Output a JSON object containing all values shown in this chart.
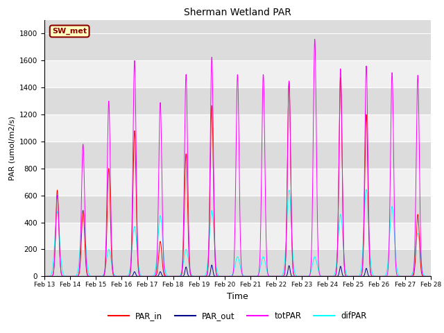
{
  "title": "Sherman Wetland PAR",
  "xlabel": "Time",
  "ylabel": "PAR (umol/m2/s)",
  "ylim": [
    0,
    1900
  ],
  "yticks": [
    0,
    200,
    400,
    600,
    800,
    1000,
    1200,
    1400,
    1600,
    1800
  ],
  "n_days": 15,
  "label_text": "SW_met",
  "label_bg": "#FFFFC0",
  "label_border": "#8B0000",
  "line_colors": {
    "PAR_in": "#FF0000",
    "PAR_out": "#00008B",
    "totPAR": "#FF00FF",
    "difPAR": "#00FFFF"
  },
  "plot_bg_light": "#F0F0F0",
  "plot_bg_dark": "#DCDCDC",
  "grid_color": "#FFFFFF",
  "totpar_peaks": [
    600,
    980,
    1300,
    1600,
    1290,
    1500,
    1630,
    1500,
    1500,
    1450,
    1760,
    1540,
    1560,
    1510,
    1490
  ],
  "parin_peaks": [
    640,
    490,
    800,
    1080,
    260,
    910,
    1270,
    0,
    0,
    1450,
    0,
    1475,
    1200,
    0,
    460
  ],
  "parout_peaks": [
    0,
    0,
    0,
    35,
    35,
    70,
    85,
    0,
    0,
    80,
    0,
    75,
    60,
    0,
    0
  ],
  "difpar_peaks": [
    480,
    490,
    200,
    370,
    450,
    200,
    490,
    145,
    145,
    640,
    145,
    460,
    645,
    520,
    320
  ],
  "spread_narrow": 0.06,
  "spread_difpar": 0.09,
  "spread_parout": 0.04
}
